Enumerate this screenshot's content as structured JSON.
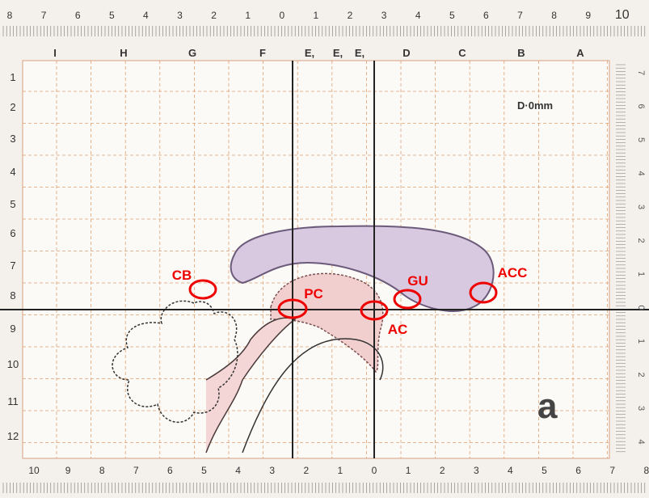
{
  "top_ruler": [
    "8",
    "7",
    "6",
    "5",
    "4",
    "3",
    "2",
    "1",
    "0",
    "1",
    "2",
    "3",
    "4",
    "5",
    "6",
    "7",
    "8",
    "9",
    "10"
  ],
  "columns": [
    "I",
    "H",
    "G",
    "F",
    "E,",
    "E,",
    "E,",
    "D",
    "C",
    "B",
    "A"
  ],
  "rows": [
    "1",
    "2",
    "3",
    "4",
    "5",
    "6",
    "7",
    "8",
    "9",
    "10",
    "11",
    "12"
  ],
  "right_ruler": [
    "7",
    "6",
    "5",
    "4",
    "3",
    "2",
    "1",
    "0",
    "1",
    "2",
    "3",
    "4"
  ],
  "bottom_ruler": [
    "10",
    "9",
    "8",
    "7",
    "6",
    "5",
    "4",
    "3",
    "2",
    "1",
    "0",
    "1",
    "2",
    "3",
    "4",
    "5",
    "6",
    "7",
    "8"
  ],
  "plate_label": "D·0mm",
  "panel_label": "a",
  "annotations": [
    "CB",
    "PC",
    "AC",
    "GU",
    "ACC"
  ]
}
